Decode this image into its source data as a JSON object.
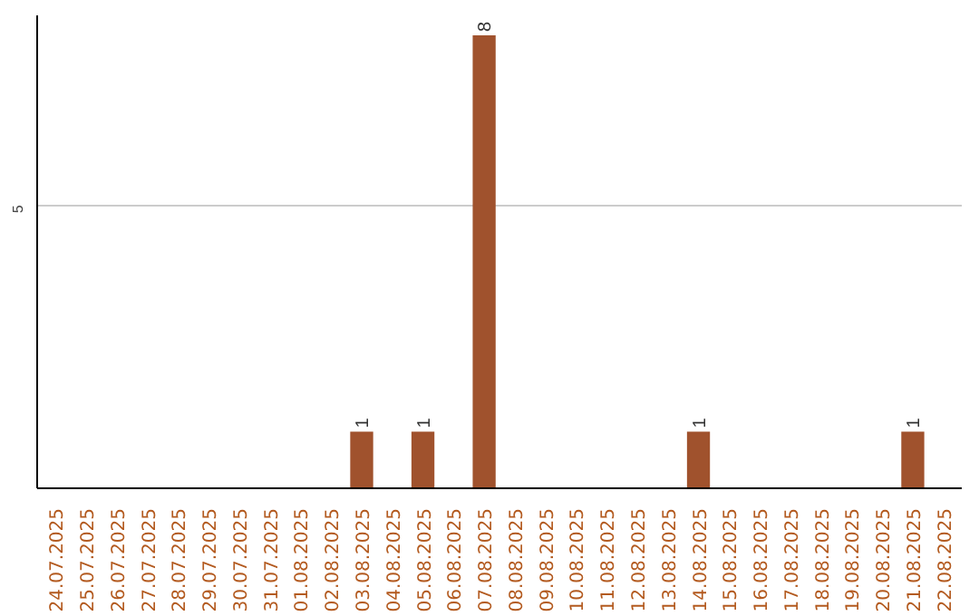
{
  "chart_data": {
    "type": "bar",
    "categories": [
      "24.07.2025",
      "25.07.2025",
      "26.07.2025",
      "27.07.2025",
      "28.07.2025",
      "29.07.2025",
      "30.07.2025",
      "31.07.2025",
      "01.08.2025",
      "02.08.2025",
      "03.08.2025",
      "04.08.2025",
      "05.08.2025",
      "06.08.2025",
      "07.08.2025",
      "08.08.2025",
      "09.08.2025",
      "10.08.2025",
      "11.08.2025",
      "12.08.2025",
      "13.08.2025",
      "14.08.2025",
      "15.08.2025",
      "16.08.2025",
      "17.08.2025",
      "18.08.2025",
      "19.08.2025",
      "20.08.2025",
      "21.08.2025",
      "22.08.2025"
    ],
    "values": [
      0,
      0,
      0,
      0,
      0,
      0,
      0,
      0,
      0,
      0,
      1,
      0,
      1,
      0,
      8,
      0,
      0,
      0,
      0,
      0,
      0,
      1,
      0,
      0,
      0,
      0,
      0,
      0,
      1,
      0
    ],
    "color": "#a0522d",
    "value_labels": [
      null,
      null,
      null,
      null,
      null,
      null,
      null,
      null,
      null,
      null,
      "1",
      null,
      "1",
      null,
      "8",
      null,
      null,
      null,
      null,
      null,
      null,
      "1",
      null,
      null,
      null,
      null,
      null,
      null,
      "1",
      null
    ],
    "ylim": [
      0,
      8.35
    ],
    "yticks": [
      5
    ],
    "grid": "y"
  }
}
